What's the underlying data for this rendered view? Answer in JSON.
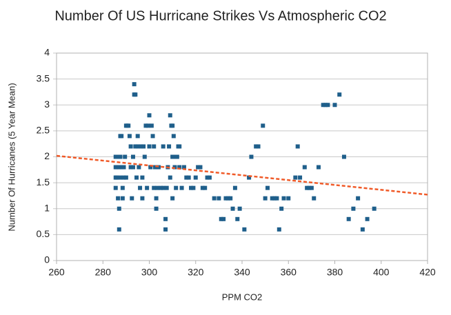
{
  "chart_data": {
    "type": "scatter",
    "title": "Number Of US Hurricane Strikes Vs Atmospheric CO2",
    "x_label": "PPM CO2",
    "y_label": "Number Of Hurricanes (5 Year Mean)",
    "color": "#1f5f8b",
    "x": [
      285.5,
      285.5,
      285.5,
      285.5,
      286,
      286,
      286.5,
      286.5,
      287,
      287,
      287,
      287.5,
      287.5,
      287.5,
      288,
      288,
      288.5,
      288.5,
      289,
      289,
      289.5,
      290,
      290,
      290.5,
      291,
      291.5,
      292,
      292,
      292.5,
      293,
      293,
      293.5,
      293.5,
      294,
      294,
      294.5,
      295,
      295,
      295.5,
      296,
      296.5,
      297,
      297,
      297.5,
      298,
      298.5,
      299,
      299.5,
      300,
      300,
      300.5,
      301,
      301.5,
      302,
      302,
      302.5,
      303,
      303,
      303.5,
      304,
      305,
      306,
      306,
      307,
      307,
      307.5,
      308,
      308.5,
      309,
      309,
      309.5,
      310,
      310,
      310,
      310.5,
      311,
      311,
      311.5,
      312,
      312.5,
      313,
      313,
      314,
      315,
      316,
      317,
      318,
      319,
      320,
      321,
      322,
      323,
      324,
      325,
      326,
      328,
      330,
      331,
      332,
      333,
      334,
      335,
      336,
      337,
      338,
      339,
      341,
      343,
      344,
      346,
      347,
      349,
      350,
      351,
      353,
      354,
      355,
      356,
      357,
      358,
      360,
      363,
      364,
      365,
      367,
      368,
      369,
      370,
      371,
      373,
      375,
      376,
      377,
      380,
      382,
      384,
      386,
      388,
      390,
      392,
      394,
      397
    ],
    "values": [
      2,
      1.8,
      1.6,
      1.4,
      1.8,
      1.6,
      2,
      1.2,
      1,
      0.6,
      1.8,
      2,
      1.6,
      2.4,
      2.4,
      1.8,
      1.4,
      1.2,
      1.8,
      1.6,
      2,
      2.6,
      1.6,
      2.6,
      2.6,
      2.4,
      1.8,
      2.2,
      1.2,
      1.8,
      2,
      3.4,
      3.2,
      3.2,
      2.2,
      1.6,
      2.4,
      2.2,
      1.8,
      1.4,
      2.2,
      1.2,
      1.6,
      2.2,
      2,
      2.6,
      1.4,
      2.6,
      2.8,
      2.2,
      1.8,
      2.6,
      2.4,
      2.2,
      1.4,
      1.8,
      1.2,
      1,
      1.4,
      1.8,
      1.4,
      2.2,
      1.4,
      0.6,
      0.8,
      1.4,
      1.8,
      2.2,
      2.8,
      1.6,
      2.6,
      2.6,
      2,
      1.2,
      2.4,
      1.8,
      2,
      1.4,
      2,
      2.2,
      2.2,
      1.8,
      1.4,
      1.8,
      1.6,
      1.6,
      1.4,
      1.4,
      1.6,
      1.8,
      1.8,
      1.4,
      1.4,
      1.6,
      1.6,
      1.2,
      1.2,
      0.8,
      0.8,
      1.2,
      1.2,
      1.2,
      1,
      1.4,
      0.8,
      1,
      0.6,
      1.6,
      2,
      2.2,
      2.2,
      2.6,
      1.2,
      1.4,
      1.2,
      1.2,
      1.2,
      0.6,
      1,
      1.2,
      1.2,
      1.6,
      2.2,
      1.6,
      1.8,
      1.4,
      1.4,
      1.4,
      1.2,
      1.8,
      3,
      3,
      3,
      3,
      3.2,
      2,
      0.8,
      1,
      1.2,
      0.6,
      0.8,
      1
    ],
    "trendline": {
      "x": [
        260,
        420
      ],
      "values": [
        2.02,
        1.27
      ],
      "color": "#f05a28"
    },
    "xlim": [
      260,
      420
    ],
    "xticks": [
      260,
      280,
      300,
      320,
      340,
      360,
      380,
      400,
      420
    ],
    "ylim": [
      0,
      4
    ],
    "yticks": [
      0,
      0.5,
      1,
      1.5,
      2,
      2.5,
      3,
      3.5,
      4
    ],
    "grid": true
  }
}
